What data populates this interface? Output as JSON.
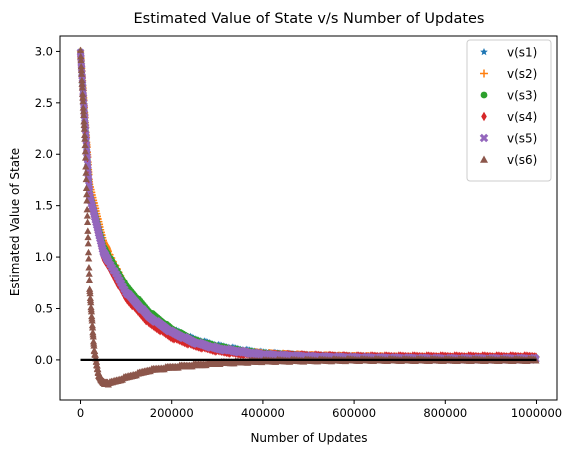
{
  "chart_data": {
    "type": "scatter",
    "title": "Estimated Value of State v/s Number of Updates",
    "xlabel": "Number of Updates",
    "ylabel": "Estimated Value of State",
    "xlim": [
      -45000,
      1045000
    ],
    "ylim": [
      -0.39,
      3.15
    ],
    "xticks": [
      0,
      200000,
      400000,
      600000,
      800000,
      1000000
    ],
    "xtick_labels": [
      "0",
      "200000",
      "400000",
      "600000",
      "800000",
      "1000000"
    ],
    "yticks": [
      0.0,
      0.5,
      1.0,
      1.5,
      2.0,
      2.5,
      3.0
    ],
    "ytick_labels": [
      "0.0",
      "0.5",
      "1.0",
      "1.5",
      "2.0",
      "2.5",
      "3.0"
    ],
    "grid": false,
    "legend_position": "top-right",
    "reference_line": {
      "value": 0.0,
      "color": "#000000"
    },
    "series": [
      {
        "name": "v(s1)",
        "marker": "star",
        "color": "#1f77b4",
        "x": [
          0,
          20000,
          50000,
          100000,
          150000,
          200000,
          250000,
          300000,
          350000,
          400000,
          500000,
          600000,
          800000,
          1000000
        ],
        "y": [
          3.0,
          1.62,
          1.1,
          0.7,
          0.45,
          0.3,
          0.2,
          0.14,
          0.1,
          0.07,
          0.04,
          0.03,
          0.02,
          0.02
        ]
      },
      {
        "name": "v(s2)",
        "marker": "plus",
        "color": "#ff7f0e",
        "x": [
          0,
          20000,
          50000,
          100000,
          150000,
          200000,
          250000,
          300000,
          350000,
          400000,
          500000,
          600000,
          800000,
          1000000
        ],
        "y": [
          3.0,
          1.7,
          1.15,
          0.7,
          0.42,
          0.27,
          0.17,
          0.12,
          0.08,
          0.06,
          0.04,
          0.03,
          0.02,
          0.02
        ]
      },
      {
        "name": "v(s3)",
        "marker": "circle",
        "color": "#2ca02c",
        "x": [
          0,
          20000,
          50000,
          100000,
          150000,
          200000,
          250000,
          300000,
          350000,
          400000,
          500000,
          600000,
          800000,
          1000000
        ],
        "y": [
          3.0,
          1.62,
          1.1,
          0.72,
          0.47,
          0.3,
          0.19,
          0.13,
          0.09,
          0.06,
          0.04,
          0.03,
          0.02,
          0.02
        ]
      },
      {
        "name": "v(s4)",
        "marker": "diamond",
        "color": "#d62728",
        "x": [
          0,
          20000,
          50000,
          100000,
          150000,
          200000,
          250000,
          300000,
          350000,
          400000,
          500000,
          600000,
          800000,
          1000000
        ],
        "y": [
          3.0,
          1.55,
          1.0,
          0.6,
          0.36,
          0.22,
          0.14,
          0.09,
          0.06,
          0.05,
          0.04,
          0.03,
          0.03,
          0.03
        ]
      },
      {
        "name": "v(s5)",
        "marker": "x",
        "color": "#9467bd",
        "x": [
          0,
          20000,
          50000,
          100000,
          150000,
          200000,
          250000,
          300000,
          350000,
          400000,
          500000,
          600000,
          800000,
          1000000
        ],
        "y": [
          3.0,
          1.6,
          1.05,
          0.66,
          0.42,
          0.27,
          0.17,
          0.11,
          0.08,
          0.05,
          0.03,
          0.02,
          0.01,
          0.01
        ]
      },
      {
        "name": "v(s6)",
        "marker": "triangle",
        "color": "#8c564b",
        "x": [
          0,
          10000,
          20000,
          30000,
          40000,
          50000,
          60000,
          80000,
          100000,
          150000,
          200000,
          300000,
          400000,
          600000,
          800000,
          1000000
        ],
        "y": [
          3.0,
          2.1,
          0.7,
          0.1,
          -0.15,
          -0.22,
          -0.23,
          -0.2,
          -0.17,
          -0.1,
          -0.07,
          -0.03,
          -0.01,
          0.0,
          0.0,
          0.0
        ]
      }
    ]
  }
}
